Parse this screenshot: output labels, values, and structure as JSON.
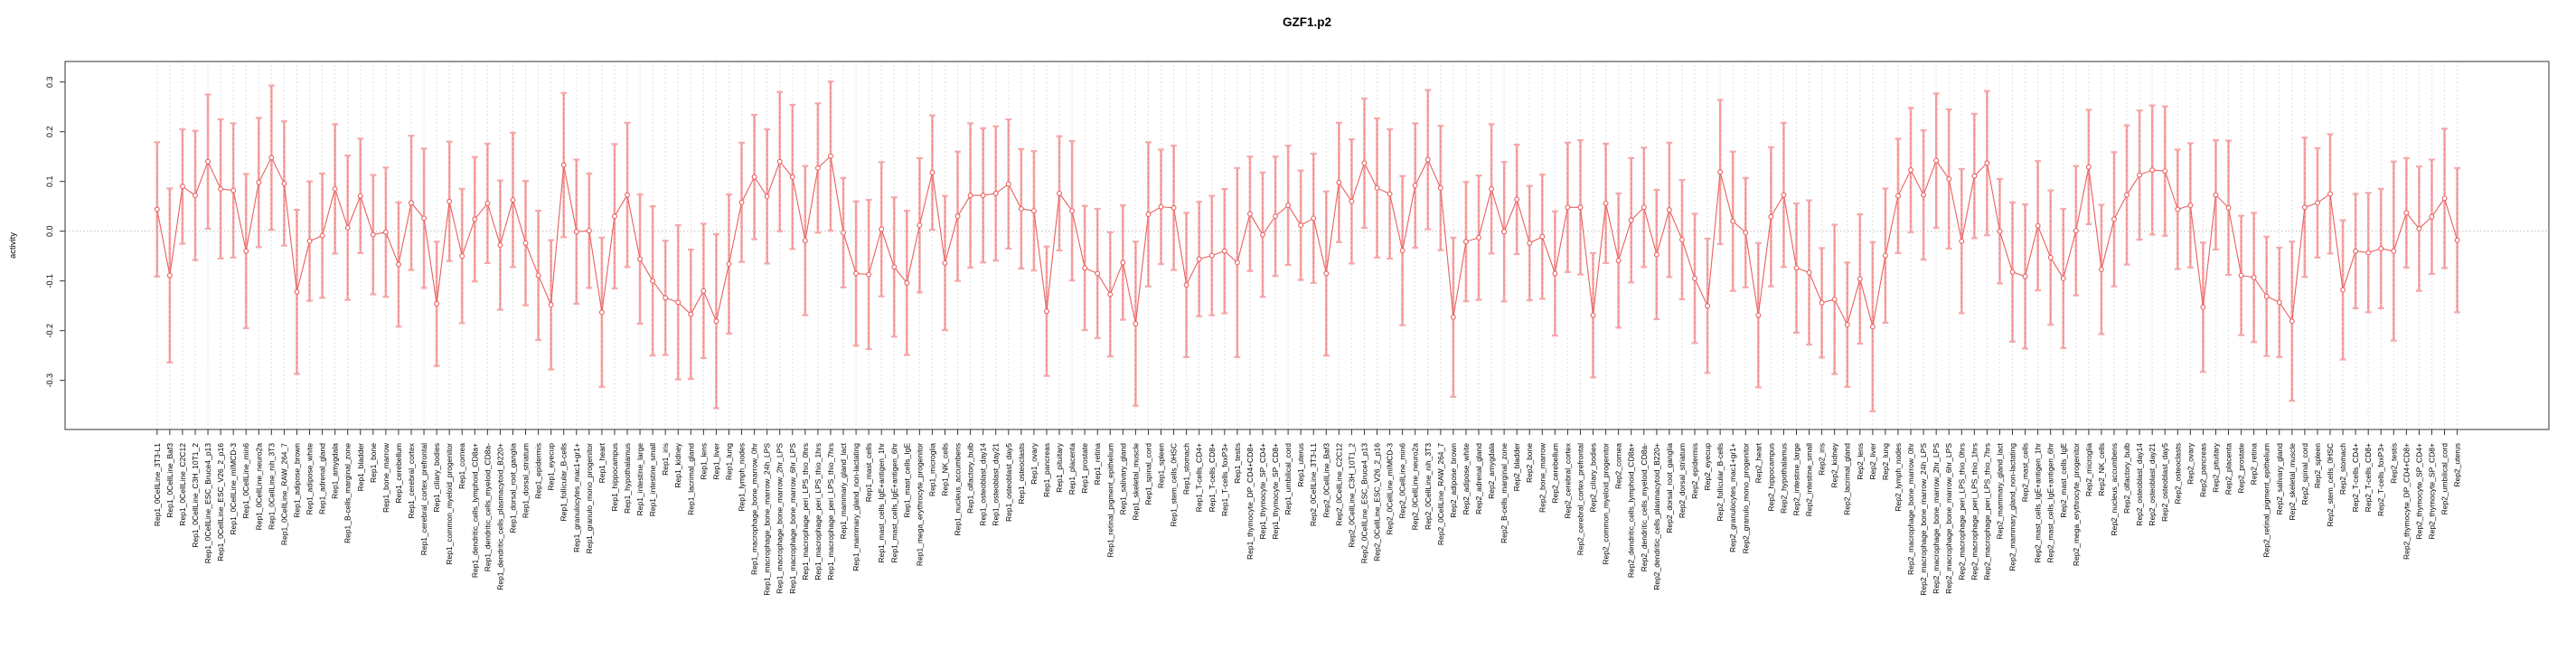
{
  "window": {
    "title": "GZF1.p2"
  },
  "colors": {
    "point_line": "#e96060",
    "error_bar": "#f5a8a8",
    "error_bar_dash": "#ef8080",
    "gridline": "#d8d8d8",
    "zero_line": "#bdbdbd",
    "plot_border": "#555555",
    "tick": "#333333",
    "background": "#ffffff",
    "text": "#000000"
  },
  "chart_data": {
    "type": "line",
    "subtype": "pointrange-errorbar",
    "title": "GZF1.p2",
    "xlabel": "",
    "ylabel": "activity",
    "ylim": [
      -0.4,
      0.335
    ],
    "yticks": [
      "0.3",
      "0.2",
      "0.1",
      "0.0",
      "-0.1",
      "-0.2",
      "-0.3"
    ],
    "ytick_values": [
      0.3,
      0.2,
      0.1,
      0.0,
      -0.1,
      -0.2,
      -0.3
    ],
    "grid": "vertical-dotted-per-category, dotted-zero-line",
    "legend": "none",
    "categories": [
      "Rep1_0CellLine_3T3-L1",
      "Rep1_0CellLine_Baf3",
      "Rep1_0CellLine_C2C12",
      "Rep1_0CellLine_C3H_10T1_2",
      "Rep1_0CellLine_ESC_Bruce4_p13",
      "Rep1_0CellLine_ESC_V26_2_p16",
      "Rep1_0CellLine_mIMCD-3",
      "Rep1_0CellLine_min6",
      "Rep1_0CellLine_neuro2a",
      "Rep1_0CellLine_nih_3T3",
      "Rep1_0CellLine_RAW_264_7",
      "Rep1_adipose_brown",
      "Rep1_adipose_white",
      "Rep1_adrenal_gland",
      "Rep1_amygdala",
      "Rep1_B-cells_marginal_zone",
      "Rep1_bladder",
      "Rep1_bone",
      "Rep1_bone_marrow",
      "Rep1_cerebellum",
      "Rep1_cerebral_cortex",
      "Rep1_cerebral_cortex_prefrontal",
      "Rep1_ciliary_bodies",
      "Rep1_common_myeloid_progenitor",
      "Rep1_cornea",
      "Rep1_dendritic_cells_lymphoid_CD8a+",
      "Rep1_dendritic_cells_myeloid_CD8a-",
      "Rep1_dendritic_cells_plasmacytoid_B220+",
      "Rep1_dorsal_root_ganglia",
      "Rep1_dorsal_striatum",
      "Rep1_epidermis",
      "Rep1_eyecup",
      "Rep1_follicular_B-cells",
      "Rep1_granulocytes_mac1+gr1+",
      "Rep1_granulo_mono_progenitor",
      "Rep1_heart",
      "Rep1_hippocampus",
      "Rep1_hypothalamus",
      "Rep1_intestine_large",
      "Rep1_intestine_small",
      "Rep1_iris",
      "Rep1_kidney",
      "Rep1_lacrimal_gland",
      "Rep1_lens",
      "Rep1_liver",
      "Rep1_lung",
      "Rep1_lymph_nodes",
      "Rep1_macrophage_bone_marrow_0hr",
      "Rep1_macrophage_bone_marrow_24h_LPS",
      "Rep1_macrophage_bone_marrow_2hr_LPS",
      "Rep1_macrophage_bone_marrow_6hr_LPS",
      "Rep1_macrophage_peri_LPS_thio_0hrs",
      "Rep1_macrophage_peri_LPS_thio_1hrs",
      "Rep1_macrophage_peri_LPS_thio_7hrs",
      "Rep1_mammary_gland_lact",
      "Rep1_mammary_gland_non-lactating",
      "Rep1_mast_cells",
      "Rep1_mast_cells_IgE+antigen_1hr",
      "Rep1_mast_cells_IgE+antigen_6hr",
      "Rep1_mast_cells_IgE",
      "Rep1_mega_erythrocyte_progenitor",
      "Rep1_microglia",
      "Rep1_NK_cells",
      "Rep1_nucleus_accumbens",
      "Rep1_olfactory_bulb",
      "Rep1_osteoblast_day14",
      "Rep1_osteoblast_day21",
      "Rep1_osteoblast_day5",
      "Rep1_osteoclasts",
      "Rep1_ovary",
      "Rep1_pancreas",
      "Rep1_pituitary",
      "Rep1_placenta",
      "Rep1_prostate",
      "Rep1_retina",
      "Rep1_retinal_pigment_epithelium",
      "Rep1_salivary_gland",
      "Rep1_skeletal_muscle",
      "Rep1_spinal_cord",
      "Rep1_spleen",
      "Rep1_stem_cells_0HSC",
      "Rep1_stomach",
      "Rep1_T-cells_CD4+",
      "Rep1_T-cells_CD8+",
      "Rep1_T-cells_foxP3+",
      "Rep1_testis",
      "Rep1_thymocyte_DP_CD4+CD8+",
      "Rep1_thymocyte_SP_CD4+",
      "Rep1_thymocyte_SP_CD8+",
      "Rep1_umbilical_cord",
      "Rep1_uterus",
      "Rep2_0CellLine_3T3-L1",
      "Rep2_0CellLine_Baf3",
      "Rep2_0CellLine_C2C12",
      "Rep2_0CellLine_C3H_10T1_2",
      "Rep2_0CellLine_ESC_Bruce4_p13",
      "Rep2_0CellLine_ESC_V26_2_p16",
      "Rep2_0CellLine_mIMCD-3",
      "Rep2_0CellLine_min6",
      "Rep2_0CellLine_neuro2a",
      "Rep2_0CellLine_nih_3T3",
      "Rep2_0CellLine_RAW_264_7",
      "Rep2_adipose_brown",
      "Rep2_adipose_white",
      "Rep2_adrenal_gland",
      "Rep2_amygdala",
      "Rep2_B-cells_marginal_zone",
      "Rep2_bladder",
      "Rep2_bone",
      "Rep2_bone_marrow",
      "Rep2_cerebellum",
      "Rep2_cerebral_cortex",
      "Rep2_cerebral_cortex_prefrontal",
      "Rep2_ciliary_bodies",
      "Rep2_common_myeloid_progenitor",
      "Rep2_cornea",
      "Rep2_dendritic_cells_lymphoid_CD8a+",
      "Rep2_dendritic_cells_myeloid_CD8a-",
      "Rep2_dendritic_cells_plasmacytoid_B220+",
      "Rep2_dorsal_root_ganglia",
      "Rep2_dorsal_striatum",
      "Rep2_epidermis",
      "Rep2_eyecup",
      "Rep2_follicular_B-cells",
      "Rep2_granulocytes_mac1+gr1+",
      "Rep2_granulo_mono_progenitor",
      "Rep2_heart",
      "Rep2_hippocampus",
      "Rep2_hypothalamus",
      "Rep2_intestine_large",
      "Rep2_intestine_small",
      "Rep2_iris",
      "Rep2_kidney",
      "Rep2_lacrimal_gland",
      "Rep2_lens",
      "Rep2_liver",
      "Rep2_lung",
      "Rep2_lymph_nodes",
      "Rep2_macrophage_bone_marrow_0hr",
      "Rep2_macrophage_bone_marrow_24h_LPS",
      "Rep2_macrophage_bone_marrow_2hr_LPS",
      "Rep2_macrophage_bone_marrow_6hr_LPS",
      "Rep2_macrophage_peri_LPS_thio_0hrs",
      "Rep2_macrophage_peri_LPS_thio_1hrs",
      "Rep2_macrophage_peri_LPS_thio_7hrs",
      "Rep2_mammary_gland_lact",
      "Rep2_mammary_gland_non-lactating",
      "Rep2_mast_cells",
      "Rep2_mast_cells_IgE+antigen_1hr",
      "Rep2_mast_cells_IgE+antigen_6hr",
      "Rep2_mast_cells_IgE",
      "Rep2_mega_erythrocyte_progenitor",
      "Rep2_microglia",
      "Rep2_NK_cells",
      "Rep2_nucleus_accumbens",
      "Rep2_olfactory_bulb",
      "Rep2_osteoblast_day14",
      "Rep2_osteoblast_day21",
      "Rep2_osteoblast_day5",
      "Rep2_osteoclasts",
      "Rep2_ovary",
      "Rep2_pancreas",
      "Rep2_pituitary",
      "Rep2_placenta",
      "Rep2_prostate",
      "Rep2_retina",
      "Rep2_retinal_pigment_epithelium",
      "Rep2_salivary_gland",
      "Rep2_skeletal_muscle",
      "Rep2_spinal_cord",
      "Rep2_spleen",
      "Rep2_stem_cells_0HSC",
      "Rep2_stomach",
      "Rep2_T-cells_CD4+",
      "Rep2_T-cells_CD8+",
      "Rep2_T-cells_foxP3+",
      "Rep2_testis",
      "Rep2_thymocyte_DP_CD4+CD8+",
      "Rep2_thymocyte_SP_CD4+",
      "Rep2_thymocyte_SP_CD8+",
      "Rep2_umbilical_cord",
      "Rep2_uterus"
    ],
    "values": [
      0.044,
      -0.089,
      0.09,
      0.072,
      0.14,
      0.085,
      0.082,
      -0.04,
      0.098,
      0.148,
      0.096,
      -0.122,
      -0.02,
      -0.009,
      0.085,
      0.007,
      0.071,
      -0.007,
      -0.002,
      -0.067,
      0.057,
      0.026,
      -0.146,
      0.06,
      -0.05,
      0.024,
      0.056,
      -0.028,
      0.063,
      -0.024,
      -0.089,
      -0.148,
      0.133,
      -0.001,
      0.001,
      -0.163,
      0.03,
      0.073,
      -0.056,
      -0.1,
      -0.134,
      -0.143,
      -0.167,
      -0.12,
      -0.181,
      -0.066,
      0.058,
      0.109,
      0.07,
      0.14,
      0.109,
      -0.019,
      0.127,
      0.151,
      -0.003,
      -0.085,
      -0.087,
      0.004,
      -0.072,
      -0.104,
      0.012,
      0.118,
      -0.064,
      0.03,
      0.072,
      0.072,
      0.076,
      0.095,
      0.045,
      0.041,
      -0.161,
      0.076,
      0.041,
      -0.074,
      -0.085,
      -0.127,
      -0.063,
      -0.186,
      0.034,
      0.049,
      0.047,
      -0.108,
      -0.056,
      -0.049,
      -0.04,
      -0.063,
      0.035,
      -0.007,
      0.03,
      0.052,
      0.012,
      0.026,
      -0.085,
      0.098,
      0.06,
      0.137,
      0.087,
      0.075,
      -0.039,
      0.092,
      0.144,
      0.087,
      -0.173,
      -0.021,
      -0.013,
      0.085,
      -0.001,
      0.064,
      -0.024,
      -0.011,
      -0.085,
      0.048,
      0.048,
      -0.169,
      0.056,
      -0.059,
      0.022,
      0.048,
      -0.047,
      0.043,
      -0.017,
      -0.095,
      -0.15,
      0.119,
      0.02,
      -0.003,
      -0.169,
      0.029,
      0.073,
      -0.074,
      -0.083,
      -0.144,
      -0.137,
      -0.188,
      -0.096,
      -0.192,
      -0.049,
      0.071,
      0.123,
      0.073,
      0.142,
      0.105,
      -0.02,
      0.111,
      0.137,
      0.0,
      -0.082,
      -0.091,
      0.011,
      -0.053,
      -0.095,
      0.001,
      0.129,
      -0.077,
      0.024,
      0.073,
      0.113,
      0.123,
      0.121,
      0.044,
      0.052,
      -0.153,
      0.073,
      0.047,
      -0.089,
      -0.093,
      -0.131,
      -0.143,
      -0.181,
      0.048,
      0.057,
      0.075,
      -0.118,
      -0.04,
      -0.043,
      -0.035,
      -0.04,
      0.037,
      0.005,
      0.029,
      0.066,
      -0.018
    ],
    "ci": [
      0.135,
      0.175,
      0.115,
      0.13,
      0.135,
      0.14,
      0.135,
      0.155,
      0.13,
      0.145,
      0.125,
      0.165,
      0.12,
      0.125,
      0.13,
      0.145,
      0.115,
      0.12,
      0.13,
      0.125,
      0.135,
      0.14,
      0.125,
      0.12,
      0.135,
      0.125,
      0.12,
      0.13,
      0.135,
      0.125,
      0.13,
      0.13,
      0.145,
      0.145,
      0.115,
      0.15,
      0.145,
      0.145,
      0.13,
      0.15,
      0.115,
      0.155,
      0.13,
      0.135,
      0.175,
      0.14,
      0.12,
      0.125,
      0.135,
      0.14,
      0.145,
      0.15,
      0.13,
      0.15,
      0.11,
      0.145,
      0.15,
      0.135,
      0.14,
      0.145,
      0.135,
      0.115,
      0.135,
      0.13,
      0.145,
      0.135,
      0.135,
      0.13,
      0.12,
      0.12,
      0.13,
      0.115,
      0.14,
      0.125,
      0.13,
      0.125,
      0.115,
      0.165,
      0.145,
      0.115,
      0.125,
      0.145,
      0.115,
      0.12,
      0.125,
      0.19,
      0.115,
      0.125,
      0.12,
      0.12,
      0.11,
      0.13,
      0.165,
      0.12,
      0.125,
      0.13,
      0.14,
      0.13,
      0.15,
      0.125,
      0.14,
      0.125,
      0.16,
      0.12,
      0.125,
      0.13,
      0.14,
      0.11,
      0.115,
      0.125,
      0.125,
      0.13,
      0.135,
      0.125,
      0.12,
      0.135,
      0.125,
      0.12,
      0.13,
      0.135,
      0.12,
      0.13,
      0.135,
      0.145,
      0.14,
      0.11,
      0.145,
      0.14,
      0.145,
      0.13,
      0.145,
      0.11,
      0.15,
      0.125,
      0.13,
      0.17,
      0.135,
      0.115,
      0.125,
      0.13,
      0.135,
      0.14,
      0.145,
      0.125,
      0.145,
      0.105,
      0.14,
      0.145,
      0.13,
      0.135,
      0.14,
      0.13,
      0.115,
      0.13,
      0.135,
      0.14,
      0.13,
      0.13,
      0.13,
      0.12,
      0.125,
      0.13,
      0.11,
      0.135,
      0.12,
      0.13,
      0.12,
      0.11,
      0.16,
      0.14,
      0.11,
      0.12,
      0.14,
      0.115,
      0.12,
      0.12,
      0.18,
      0.11,
      0.125,
      0.115,
      0.14,
      0.145
    ]
  }
}
